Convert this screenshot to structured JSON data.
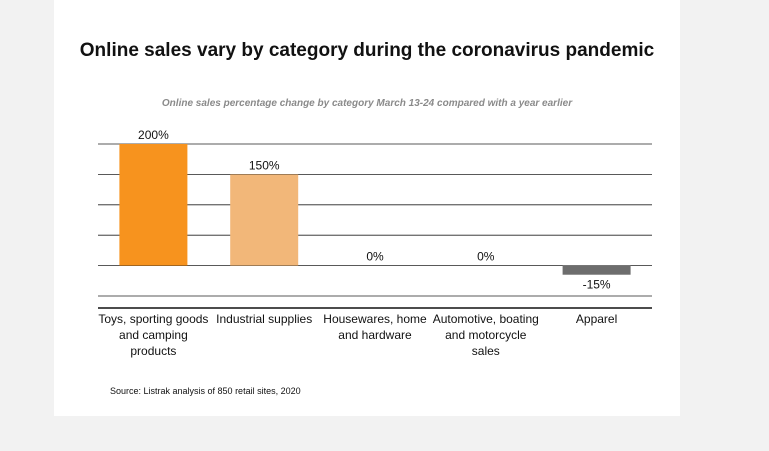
{
  "chart_data": {
    "type": "bar",
    "title": "Online sales vary by category during the coronavirus pandemic",
    "subtitle": "Online sales percentage change by category  March 13-24 compared with a year earlier",
    "categories": [
      "Toys, sporting goods and camping products",
      "Industrial supplies",
      "Housewares, home and hardware",
      "Automotive, boating and motorcycle sales",
      "Apparel"
    ],
    "values": [
      200,
      150,
      0,
      0,
      -15
    ],
    "data_labels": [
      "200%",
      "150%",
      "0%",
      "0%",
      "-15%"
    ],
    "colors": [
      "#f7931e",
      "#f2b779",
      "#f2b779",
      "#f2b779",
      "#6d6d6d"
    ],
    "ylim": [
      -50,
      200
    ],
    "grid": true,
    "xlabel": "",
    "ylabel": "",
    "source": "Source: Listrak analysis of 850 retail sites, 2020"
  }
}
